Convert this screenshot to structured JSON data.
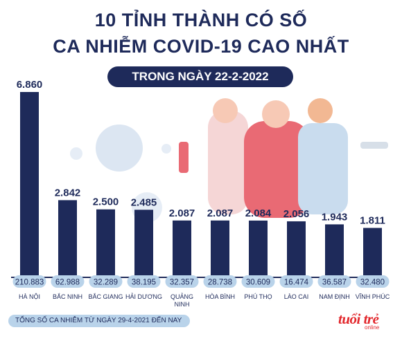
{
  "header": {
    "title_line1": "10 TỈNH THÀNH CÓ SỐ",
    "title_line2": "CA NHIỄM COVID-19 CAO NHẤT",
    "date_pill": "TRONG NGÀY 22-2-2022"
  },
  "colors": {
    "navy": "#1e2a5a",
    "pill_light": "#b9d3ea",
    "accent_red": "#e2262b"
  },
  "chart_data": {
    "type": "bar",
    "categories": [
      "HÀ NỘI",
      "BẮC NINH",
      "BẮC GIANG",
      "HẢI DƯƠNG",
      "QUẢNG NINH",
      "HÒA BÌNH",
      "PHÚ THỌ",
      "LÀO CAI",
      "NAM ĐỊNH",
      "VĨNH PHÚC"
    ],
    "category_lines": [
      [
        "HÀ NỘI"
      ],
      [
        "BẮC NINH"
      ],
      [
        "BẮC GIANG"
      ],
      [
        "HẢI DƯƠNG"
      ],
      [
        "QUẢNG",
        "NINH"
      ],
      [
        "HÒA BÌNH"
      ],
      [
        "PHÚ THỌ"
      ],
      [
        "LÀO CAI"
      ],
      [
        "NAM ĐỊNH"
      ],
      [
        "VĨNH PHÚC"
      ]
    ],
    "values": [
      6860,
      2842,
      2500,
      2485,
      2087,
      2087,
      2084,
      2056,
      1943,
      1811
    ],
    "value_labels": [
      "6.860",
      "2.842",
      "2.500",
      "2.485",
      "2.087",
      "2.087",
      "2.084",
      "2.056",
      "1.943",
      "1.811"
    ],
    "cumulative_labels": [
      "210.883",
      "62.988",
      "32.289",
      "38.195",
      "32.357",
      "28.738",
      "30.609",
      "16.474",
      "36.587",
      "32.480"
    ],
    "ylim": [
      0,
      6860
    ],
    "grid": false
  },
  "legend": {
    "label": "TỔNG SỐ CA NHIỄM TỪ NGÀY 29-4-2021 ĐẾN NAY"
  },
  "logo": {
    "main": "tuổi trẻ",
    "sub": "online"
  }
}
